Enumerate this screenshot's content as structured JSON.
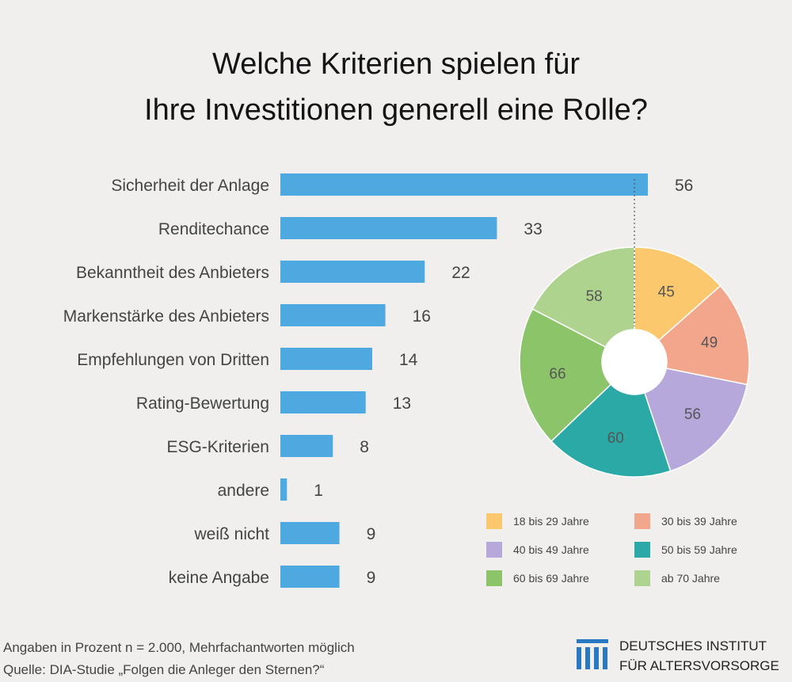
{
  "title": {
    "line1": "Welche Kriterien spielen für",
    "line2": "Ihre Investitionen generell eine Rolle?"
  },
  "colors": {
    "bar": "#4fa9e1",
    "background": "#f0efed",
    "pie": [
      "#fbc86e",
      "#f2a68c",
      "#b6a8db",
      "#2aa9a6",
      "#8cc46a",
      "#aed38e"
    ]
  },
  "chart_data": [
    {
      "type": "bar",
      "orientation": "horizontal",
      "categories": [
        "Sicherheit der Anlage",
        "Renditechance",
        "Bekanntheit des Anbieters",
        "Markenstärke des Anbieters",
        "Empfehlungen von Dritten",
        "Rating-Bewertung",
        "ESG-Kriterien",
        "andere",
        "weiß nicht",
        "keine Angabe"
      ],
      "values": [
        56,
        33,
        22,
        16,
        14,
        13,
        8,
        1,
        9,
        9
      ],
      "xlim": [
        0,
        56
      ]
    },
    {
      "type": "pie",
      "style": "donut",
      "labels": [
        "18 bis 29 Jahre",
        "30 bis 39 Jahre",
        "40 bis 49 Jahre",
        "50 bis 59 Jahre",
        "60 bis 69 Jahre",
        "ab 70 Jahre"
      ],
      "values": [
        45,
        49,
        56,
        60,
        66,
        58
      ],
      "legend_position": "bottom"
    }
  ],
  "footer": {
    "line1": "Angaben in Prozent  n = 2.000, Mehrfachantworten möglich",
    "line2": "Quelle: DIA-Studie „Folgen die Anleger den Sternen?“"
  },
  "logo": {
    "line1": "DEUTSCHES INSTITUT",
    "line2": "FÜR ALTERSVORSORGE"
  }
}
